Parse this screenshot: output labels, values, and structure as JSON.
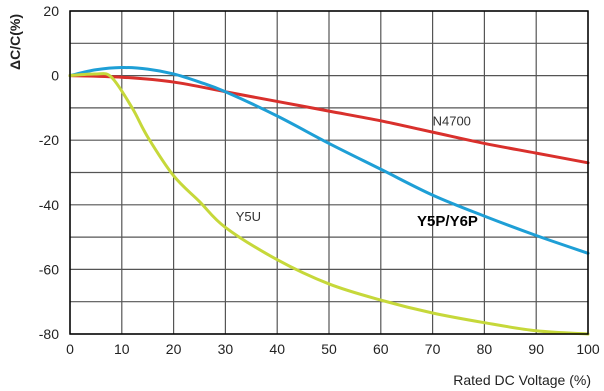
{
  "chart_data": {
    "type": "line",
    "title": "",
    "xlabel": "Rated DC Voltage (%)",
    "ylabel": "ΔC/C(%)",
    "xlim": [
      0,
      100
    ],
    "ylim": [
      -80,
      20
    ],
    "x_ticks": [
      0,
      10,
      20,
      30,
      40,
      50,
      60,
      70,
      80,
      90,
      100
    ],
    "y_ticks": [
      20,
      0,
      -20,
      -40,
      -60,
      -80
    ],
    "grid": true,
    "legend": "none",
    "series": [
      {
        "color": "#d9302c",
        "x": [
          0,
          10,
          20,
          30,
          40,
          50,
          60,
          70,
          80,
          90,
          100
        ],
        "y": [
          0,
          -0.5,
          -2,
          -5,
          -8,
          -11,
          -14,
          -17.5,
          -21,
          -24,
          -27
        ]
      },
      {
        "color": "#1e9fd6",
        "x": [
          0,
          5,
          10,
          15,
          20,
          25,
          30,
          40,
          50,
          60,
          70,
          80,
          90,
          100
        ],
        "y": [
          0,
          1.8,
          2.5,
          2,
          0.5,
          -2,
          -5,
          -12.5,
          -21,
          -29,
          -37,
          -43.5,
          -49.5,
          -55
        ]
      },
      {
        "color": "#c6d83a",
        "x": [
          0,
          5,
          8,
          12,
          15,
          20,
          25,
          30,
          40,
          50,
          60,
          70,
          80,
          90,
          100
        ],
        "y": [
          0,
          0.5,
          -0.5,
          -10,
          -19,
          -31,
          -39,
          -47,
          -57,
          -64.5,
          -69.5,
          -73.5,
          -76.5,
          -79,
          -80
        ]
      }
    ],
    "annotations": [
      {
        "text": "N4700",
        "x": 70,
        "y": -15.5,
        "style": "plain"
      },
      {
        "text": "Y5U",
        "x": 32,
        "y": -45,
        "style": "plain"
      },
      {
        "text": "Y5P/Y6P",
        "x": 67,
        "y": -46.5,
        "style": "bold"
      }
    ]
  }
}
